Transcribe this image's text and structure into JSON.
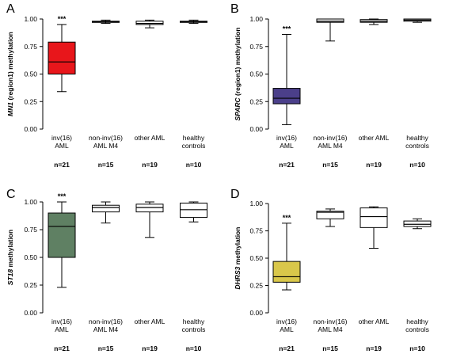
{
  "chart_data": [
    {
      "panel_label": "A",
      "type": "box",
      "ylabel_gene": "MN1",
      "ylabel_rest": " (region1) methylation",
      "ylim": [
        0.0,
        1.0
      ],
      "yticks": [
        "0.00",
        "0.25",
        "0.50",
        "0.75",
        "1.00"
      ],
      "groups": [
        {
          "label": [
            "inv(16)",
            "AML"
          ],
          "n": "n=21",
          "min": 0.34,
          "q1": 0.5,
          "median": 0.61,
          "q3": 0.79,
          "max": 0.95,
          "fill": "#e8161b",
          "sig": "***"
        },
        {
          "label": [
            "non-inv(16)",
            "AML M4"
          ],
          "n": "n=15",
          "min": 0.96,
          "q1": 0.97,
          "median": 0.975,
          "q3": 0.98,
          "max": 0.99,
          "fill": "#ffffff",
          "sig": ""
        },
        {
          "label": [
            "other AML"
          ],
          "n": "n=19",
          "min": 0.92,
          "q1": 0.95,
          "median": 0.96,
          "q3": 0.98,
          "max": 0.99,
          "fill": "#ffffff",
          "sig": ""
        },
        {
          "label": [
            "healthy",
            "controls"
          ],
          "n": "n=10",
          "min": 0.96,
          "q1": 0.97,
          "median": 0.975,
          "q3": 0.98,
          "max": 0.99,
          "fill": "#ffffff",
          "sig": ""
        }
      ]
    },
    {
      "panel_label": "B",
      "type": "box",
      "ylabel_gene": "SPARC",
      "ylabel_rest": " (region1) methylation",
      "ylim": [
        0.0,
        1.0
      ],
      "yticks": [
        "0.00",
        "0.25",
        "0.50",
        "0.75",
        "1.00"
      ],
      "groups": [
        {
          "label": [
            "inv(16)",
            "AML"
          ],
          "n": "n=21",
          "min": 0.04,
          "q1": 0.23,
          "median": 0.28,
          "q3": 0.37,
          "max": 0.86,
          "fill": "#4b3f8a",
          "sig": "***"
        },
        {
          "label": [
            "non-inv(16)",
            "AML M4"
          ],
          "n": "n=15",
          "min": 0.8,
          "q1": 0.97,
          "median": 0.98,
          "q3": 1.0,
          "max": 1.0,
          "fill": "#ffffff",
          "sig": ""
        },
        {
          "label": [
            "other AML"
          ],
          "n": "n=19",
          "min": 0.95,
          "q1": 0.97,
          "median": 0.98,
          "q3": 0.995,
          "max": 1.0,
          "fill": "#ffffff",
          "sig": ""
        },
        {
          "label": [
            "healthy",
            "controls"
          ],
          "n": "n=10",
          "min": 0.97,
          "q1": 0.98,
          "median": 0.99,
          "q3": 1.0,
          "max": 1.0,
          "fill": "#ffffff",
          "sig": ""
        }
      ]
    },
    {
      "panel_label": "C",
      "type": "box",
      "ylabel_gene": "ST18",
      "ylabel_rest": " methylation",
      "ylim": [
        0.0,
        1.0
      ],
      "yticks": [
        "0.00",
        "0.25",
        "0.50",
        "0.75",
        "1.00"
      ],
      "groups": [
        {
          "label": [
            "inv(16)",
            "AML"
          ],
          "n": "n=21",
          "min": 0.23,
          "q1": 0.5,
          "median": 0.78,
          "q3": 0.9,
          "max": 1.0,
          "fill": "#5f8063",
          "sig": "***"
        },
        {
          "label": [
            "non-inv(16)",
            "AML M4"
          ],
          "n": "n=15",
          "min": 0.81,
          "q1": 0.91,
          "median": 0.95,
          "q3": 0.97,
          "max": 1.0,
          "fill": "#ffffff",
          "sig": ""
        },
        {
          "label": [
            "other AML"
          ],
          "n": "n=19",
          "min": 0.68,
          "q1": 0.91,
          "median": 0.95,
          "q3": 0.98,
          "max": 1.0,
          "fill": "#ffffff",
          "sig": ""
        },
        {
          "label": [
            "healthy",
            "controls"
          ],
          "n": "n=10",
          "min": 0.82,
          "q1": 0.86,
          "median": 0.93,
          "q3": 0.99,
          "max": 1.0,
          "fill": "#ffffff",
          "sig": ""
        }
      ]
    },
    {
      "panel_label": "D",
      "type": "box",
      "ylabel_gene": "DHRS3",
      "ylabel_rest": " methylation",
      "ylim": [
        0.0,
        1.0
      ],
      "yticks": [
        "0.00",
        "0.25",
        "0.50",
        "0.75",
        "1.00"
      ],
      "groups": [
        {
          "label": [
            "inv(16)",
            "AML"
          ],
          "n": "n=21",
          "min": 0.21,
          "q1": 0.28,
          "median": 0.33,
          "q3": 0.47,
          "max": 0.82,
          "fill": "#d9c74a",
          "sig": "***"
        },
        {
          "label": [
            "non-inv(16)",
            "AML M4"
          ],
          "n": "n=15",
          "min": 0.79,
          "q1": 0.86,
          "median": 0.92,
          "q3": 0.93,
          "max": 0.95,
          "fill": "#ffffff",
          "sig": ""
        },
        {
          "label": [
            "other AML"
          ],
          "n": "n=19",
          "min": 0.59,
          "q1": 0.78,
          "median": 0.88,
          "q3": 0.96,
          "max": 0.97,
          "fill": "#ffffff",
          "sig": ""
        },
        {
          "label": [
            "healthy",
            "controls"
          ],
          "n": "n=10",
          "min": 0.77,
          "q1": 0.79,
          "median": 0.81,
          "q3": 0.84,
          "max": 0.86,
          "fill": "#ffffff",
          "sig": ""
        }
      ]
    }
  ]
}
